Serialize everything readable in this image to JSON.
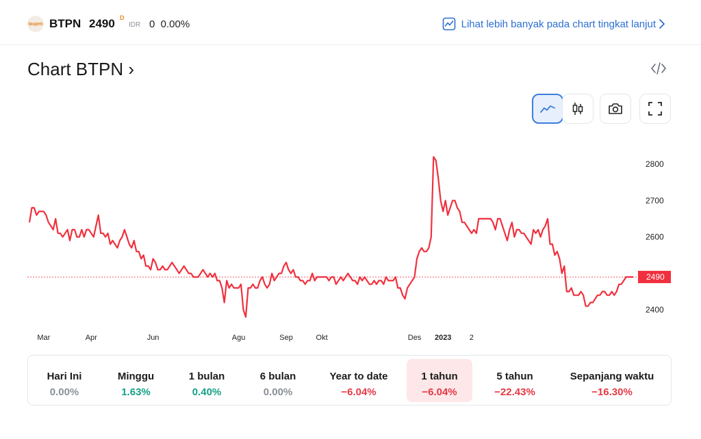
{
  "header": {
    "logo_text": "taspen",
    "ticker": "BTPN",
    "price": "2490",
    "price_marker": "D",
    "currency": "IDR",
    "change": "0  0.00%",
    "advanced_link": "Lihat lebih banyak pada chart tingkat lanjut"
  },
  "title": "Chart BTPN ›",
  "icons": {
    "advanced": "chart-trend-icon",
    "embed": "code-embed-icon",
    "line": "line-chart-icon",
    "candle": "candlestick-icon",
    "camera": "camera-icon",
    "fullscreen": "fullscreen-icon"
  },
  "colors": {
    "line": "#f0303e",
    "up": "#16a085",
    "down": "#e53945",
    "neutral": "#8a8f98",
    "link": "#2c6fd1",
    "selected_bg": "#fde7e8"
  },
  "chart_data": {
    "type": "line",
    "title": "",
    "xlabel": "",
    "ylabel": "",
    "ylim": [
      2370,
      2880
    ],
    "y_ticks": [
      2400,
      2500,
      2600,
      2700,
      2800
    ],
    "y_tick_labels": [
      "2400",
      "",
      "2600",
      "2700",
      "2800"
    ],
    "x_tick_labels": [
      {
        "label": "Mar",
        "i": 6,
        "bold": false
      },
      {
        "label": "Apr",
        "i": 26,
        "bold": false
      },
      {
        "label": "Jun",
        "i": 52,
        "bold": false
      },
      {
        "label": "Agu",
        "i": 88,
        "bold": false
      },
      {
        "label": "Sep",
        "i": 108,
        "bold": false
      },
      {
        "label": "Okt",
        "i": 123,
        "bold": false
      },
      {
        "label": "Des",
        "i": 162,
        "bold": false
      },
      {
        "label": "2023",
        "i": 174,
        "bold": true
      },
      {
        "label": "2",
        "i": 186,
        "bold": false
      }
    ],
    "current_value": 2490,
    "current_label": "2490",
    "series": [
      {
        "values": [
          2640,
          2680,
          2680,
          2660,
          2670,
          2670,
          2670,
          2660,
          2640,
          2630,
          2620,
          2650,
          2610,
          2610,
          2600,
          2610,
          2620,
          2590,
          2620,
          2620,
          2600,
          2600,
          2620,
          2600,
          2620,
          2620,
          2610,
          2600,
          2630,
          2660,
          2610,
          2610,
          2600,
          2610,
          2580,
          2590,
          2580,
          2570,
          2590,
          2600,
          2620,
          2600,
          2580,
          2570,
          2590,
          2560,
          2560,
          2540,
          2550,
          2520,
          2520,
          2510,
          2540,
          2530,
          2510,
          2510,
          2520,
          2510,
          2510,
          2520,
          2530,
          2520,
          2510,
          2500,
          2510,
          2520,
          2510,
          2500,
          2500,
          2490,
          2490,
          2490,
          2500,
          2510,
          2500,
          2490,
          2500,
          2490,
          2500,
          2480,
          2480,
          2460,
          2420,
          2480,
          2460,
          2470,
          2460,
          2460,
          2460,
          2470,
          2400,
          2380,
          2460,
          2460,
          2470,
          2460,
          2460,
          2480,
          2490,
          2470,
          2460,
          2470,
          2500,
          2480,
          2490,
          2500,
          2500,
          2520,
          2530,
          2510,
          2500,
          2510,
          2490,
          2490,
          2480,
          2480,
          2470,
          2480,
          2480,
          2500,
          2480,
          2490,
          2490,
          2490,
          2490,
          2490,
          2480,
          2490,
          2490,
          2470,
          2480,
          2490,
          2480,
          2490,
          2500,
          2490,
          2480,
          2480,
          2470,
          2490,
          2480,
          2490,
          2480,
          2470,
          2470,
          2480,
          2470,
          2480,
          2480,
          2470,
          2490,
          2480,
          2480,
          2480,
          2490,
          2460,
          2460,
          2440,
          2430,
          2460,
          2470,
          2480,
          2490,
          2540,
          2560,
          2570,
          2560,
          2560,
          2570,
          2600,
          2820,
          2810,
          2760,
          2700,
          2670,
          2700,
          2660,
          2680,
          2700,
          2700,
          2680,
          2670,
          2640,
          2640,
          2630,
          2620,
          2610,
          2620,
          2610,
          2650,
          2650,
          2650,
          2650,
          2650,
          2650,
          2640,
          2620,
          2650,
          2650,
          2630,
          2610,
          2590,
          2620,
          2640,
          2600,
          2620,
          2620,
          2610,
          2610,
          2600,
          2590,
          2580,
          2620,
          2610,
          2620,
          2600,
          2620,
          2630,
          2650,
          2580,
          2580,
          2550,
          2560,
          2540,
          2500,
          2520,
          2450,
          2450,
          2460,
          2440,
          2440,
          2440,
          2450,
          2440,
          2410,
          2410,
          2420,
          2420,
          2430,
          2440,
          2440,
          2450,
          2450,
          2440,
          2440,
          2450,
          2440,
          2450,
          2470,
          2470,
          2480,
          2490,
          2490,
          2490,
          2490
        ]
      }
    ],
    "grid": false,
    "legend": "none"
  },
  "periods": [
    {
      "label": "Hari Ini",
      "value": "0.00%",
      "trend": "neutral"
    },
    {
      "label": "Minggu",
      "value": "1.63%",
      "trend": "up"
    },
    {
      "label": "1 bulan",
      "value": "0.40%",
      "trend": "up"
    },
    {
      "label": "6 bulan",
      "value": "0.00%",
      "trend": "neutral"
    },
    {
      "label": "Year to date",
      "value": "−6.04%",
      "trend": "down"
    },
    {
      "label": "1 tahun",
      "value": "−6.04%",
      "trend": "down",
      "selected": true
    },
    {
      "label": "5 tahun",
      "value": "−22.43%",
      "trend": "down"
    },
    {
      "label": "Sepanjang waktu",
      "value": "−16.30%",
      "trend": "down"
    }
  ]
}
